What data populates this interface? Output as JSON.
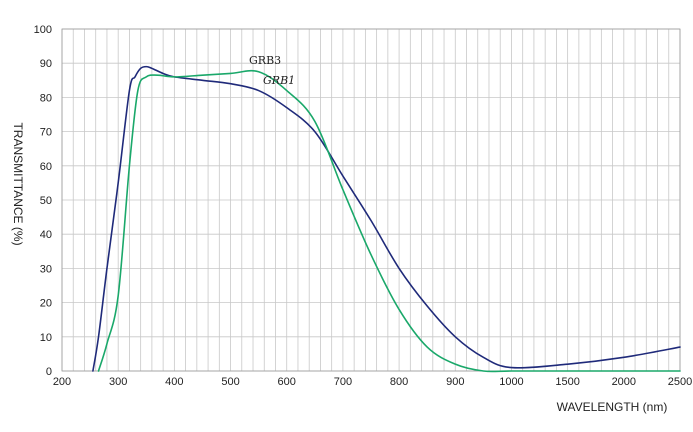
{
  "chart_data": {
    "type": "line",
    "xlabel": "WAVELENGTH (nm)",
    "ylabel": "TRANSMITTANCE (%)",
    "ylim": [
      0,
      100
    ],
    "y_ticks": [
      0,
      10,
      20,
      30,
      40,
      50,
      60,
      70,
      80,
      90,
      100
    ],
    "x_ticks": [
      200,
      300,
      400,
      500,
      600,
      700,
      800,
      900,
      1000,
      1500,
      2000,
      2500
    ],
    "x_tick_labels": [
      "200",
      "300",
      "400",
      "500",
      "600",
      "700",
      "800",
      "900",
      "1000",
      "1500",
      "2000",
      "2500"
    ],
    "x_scale": "piecewise: 200–1000 nm linear at 100 nm per major division, then 1000–2500 nm at 500 nm per major division",
    "grid": true,
    "legend": "none; series named by labels on the curves",
    "series": [
      {
        "name": "GRB1",
        "color": "#1f2a7a",
        "x": [
          255,
          265,
          280,
          300,
          320,
          330,
          340,
          350,
          360,
          380,
          400,
          450,
          500,
          550,
          600,
          650,
          700,
          750,
          800,
          850,
          900,
          950,
          1000,
          1500,
          2000,
          2500
        ],
        "y": [
          0,
          10,
          30,
          55,
          82,
          86,
          88.5,
          89,
          88.5,
          87,
          86,
          85,
          84,
          82,
          77,
          70,
          57,
          44,
          30,
          19,
          10,
          4,
          1,
          2,
          4,
          7
        ]
      },
      {
        "name": "GRB3",
        "color": "#1aa86a",
        "x": [
          265,
          280,
          300,
          320,
          335,
          350,
          370,
          400,
          450,
          500,
          550,
          600,
          650,
          700,
          750,
          800,
          850,
          900,
          950,
          1000,
          1500,
          2000,
          2500
        ],
        "y": [
          0,
          8,
          22,
          60,
          82,
          86,
          86.5,
          86,
          86.5,
          87,
          87.5,
          82,
          73,
          53,
          34,
          18,
          7,
          2,
          0,
          0,
          0,
          0,
          0
        ]
      }
    ]
  }
}
